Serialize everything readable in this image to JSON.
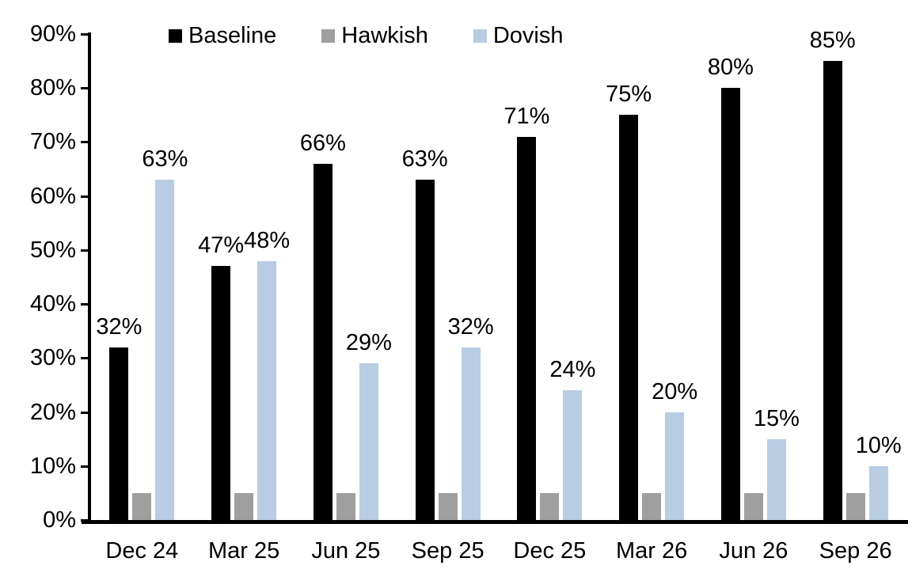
{
  "chart_data": {
    "type": "bar",
    "title": "",
    "categories": [
      "Dec 24",
      "Mar 25",
      "Jun 25",
      "Sep 25",
      "Dec 25",
      "Mar 26",
      "Jun 26",
      "Sep 26"
    ],
    "series": [
      {
        "name": "Baseline",
        "color": "#000000",
        "values": [
          32,
          47,
          66,
          63,
          71,
          75,
          80,
          85
        ],
        "data_labels": [
          "32%",
          "47%",
          "66%",
          "63%",
          "71%",
          "75%",
          "80%",
          "85%"
        ],
        "labels_shown": true
      },
      {
        "name": "Hawkish",
        "color": "#9f9f9f",
        "values": [
          5,
          5,
          5,
          5,
          5,
          5,
          5,
          5
        ],
        "data_labels": [],
        "labels_shown": false
      },
      {
        "name": "Dovish",
        "color": "#b8cce4",
        "values": [
          63,
          48,
          29,
          32,
          24,
          20,
          15,
          10
        ],
        "data_labels": [
          "63%",
          "48%",
          "29%",
          "32%",
          "24%",
          "20%",
          "15%",
          "10%"
        ],
        "labels_shown": true
      }
    ],
    "ylabel": "",
    "xlabel": "",
    "ylim": [
      0,
      90
    ],
    "ytick_step": 10,
    "ytick_labels": [
      "0%",
      "10%",
      "20%",
      "30%",
      "40%",
      "50%",
      "60%",
      "70%",
      "80%",
      "90%"
    ],
    "grid": false,
    "legend_position": "top",
    "axis_color": "#000000"
  }
}
